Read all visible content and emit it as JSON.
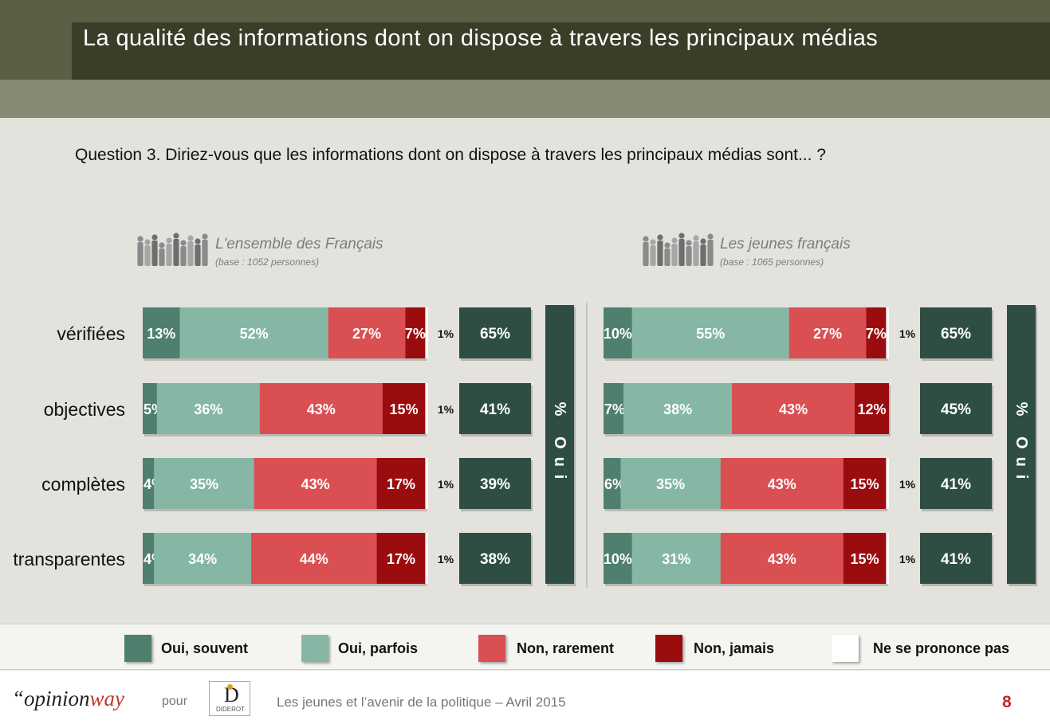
{
  "title": "La qualité des informations dont on dispose à travers les principaux médias",
  "question": "Question 3. Diriez-vous que les informations dont on dispose à travers les principaux médias sont... ?",
  "groups": [
    {
      "title": "L'ensemble des Français",
      "base": "(base : 1052 personnes)"
    },
    {
      "title": "Les jeunes français",
      "base": "(base : 1065 personnes)"
    }
  ],
  "chart_data": {
    "type": "bar",
    "orientation": "horizontal-stacked",
    "categories": [
      "vérifiées",
      "objectives",
      "complètes",
      "transparentes"
    ],
    "series_names": [
      "Oui, souvent",
      "Oui, parfois",
      "Non, rarement",
      "Non, jamais",
      "Ne se prononce pas"
    ],
    "colors": [
      "#4f7f6e",
      "#86b7a5",
      "#d94f52",
      "#9b0c0f",
      "#ffffff"
    ],
    "total_label": "% Oui",
    "total_color": "#2e4e43",
    "panels": [
      {
        "group": "L'ensemble des Français",
        "rows": [
          {
            "category": "vérifiées",
            "values": [
              13,
              52,
              27,
              7,
              1
            ],
            "labels": [
              "13%",
              "52%",
              "27%",
              "7%",
              "1%"
            ],
            "total": "65%"
          },
          {
            "category": "objectives",
            "values": [
              5,
              36,
              43,
              15,
              1
            ],
            "labels": [
              "5%",
              "36%",
              "43%",
              "15%",
              "1%"
            ],
            "total": "41%"
          },
          {
            "category": "complètes",
            "values": [
              4,
              35,
              43,
              17,
              1
            ],
            "labels": [
              "4%",
              "35%",
              "43%",
              "17%",
              "1%"
            ],
            "total": "39%"
          },
          {
            "category": "transparentes",
            "values": [
              4,
              34,
              44,
              17,
              1
            ],
            "labels": [
              "4%",
              "34%",
              "44%",
              "17%",
              "1%"
            ],
            "total": "38%"
          }
        ]
      },
      {
        "group": "Les jeunes français",
        "rows": [
          {
            "category": "vérifiées",
            "values": [
              10,
              55,
              27,
              7,
              1
            ],
            "labels": [
              "10%",
              "55%",
              "27%",
              "7%",
              "1%"
            ],
            "total": "65%"
          },
          {
            "category": "objectives",
            "values": [
              7,
              38,
              43,
              12,
              0
            ],
            "labels": [
              "7%",
              "38%",
              "43%",
              "12%",
              ""
            ],
            "total": "45%"
          },
          {
            "category": "complètes",
            "values": [
              6,
              35,
              43,
              15,
              1
            ],
            "labels": [
              "6%",
              "35%",
              "43%",
              "15%",
              "1%"
            ],
            "total": "41%"
          },
          {
            "category": "transparentes",
            "values": [
              10,
              31,
              43,
              15,
              1
            ],
            "labels": [
              "10%",
              "31%",
              "43%",
              "15%",
              "1%"
            ],
            "total": "41%"
          }
        ]
      }
    ]
  },
  "legend": [
    {
      "label": "Oui, souvent",
      "color": "#4f7f6e"
    },
    {
      "label": "Oui, parfois",
      "color": "#86b7a5"
    },
    {
      "label": "Non, rarement",
      "color": "#d94f52"
    },
    {
      "label": "Non, jamais",
      "color": "#9b0c0f"
    },
    {
      "label": "Ne se prononce pas",
      "color": "#ffffff"
    }
  ],
  "footer": {
    "brand_quote": "“",
    "brand_a": "opinion",
    "brand_b": "way",
    "pour": "pour",
    "logo_text": "DIDEROT",
    "logo_letter": "D",
    "text": "Les jeunes et l’avenir de la politique – Avril 2015",
    "page": "8"
  }
}
